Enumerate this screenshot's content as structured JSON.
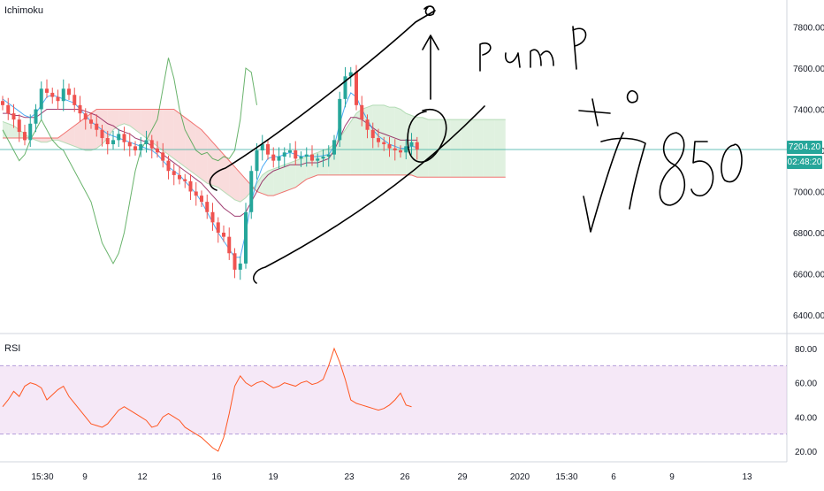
{
  "panes": {
    "main_label": "Ichimoku",
    "rsi_label": "RSI"
  },
  "price_tags": {
    "last_price": "7204.20",
    "countdown": "02:48:20"
  },
  "colors": {
    "up": "#26a69a",
    "down": "#ef5350",
    "conversion": "#2196f3",
    "base": "#880e4f",
    "lagging": "#43a047",
    "cloud_bull": "#a5d6a7",
    "cloud_bear": "#ef9a9a",
    "rsi_line": "#ff5722",
    "rsi_band": "#e1bee7",
    "price_line": "#26a69a",
    "annotation": "#000000"
  },
  "annotation": {
    "text_pump": "pump",
    "text_target": "7850"
  },
  "chart_data": [
    {
      "type": "candlestick",
      "title": "Ichimoku",
      "ylim": [
        6300,
        7900
      ],
      "y_ticks": [
        6400,
        6600,
        6800,
        7000,
        7200,
        7400,
        7600,
        7800
      ],
      "y_tick_labels": [
        "6400.00",
        "6600.00",
        "6800.00",
        "7000.00",
        "7200.00",
        "7400.00",
        "7600.00",
        "7800.00"
      ],
      "x_tick_labels": [
        "15:30",
        "9",
        "12",
        "16",
        "19",
        "23",
        "26",
        "29",
        "2020",
        "15:30",
        "6",
        "9",
        "13"
      ],
      "last_price": 7204.2,
      "candles_close": [
        7420,
        7380,
        7350,
        7290,
        7250,
        7330,
        7400,
        7500,
        7480,
        7460,
        7440,
        7500,
        7470,
        7420,
        7380,
        7350,
        7330,
        7300,
        7260,
        7230,
        7250,
        7280,
        7240,
        7220,
        7200,
        7230,
        7250,
        7210,
        7190,
        7150,
        7100,
        7080,
        7060,
        7050,
        7000,
        6980,
        6950,
        6900,
        6850,
        6800,
        6780,
        6700,
        6620,
        6650,
        6900,
        7100,
        7200,
        7230,
        7180,
        7150,
        7170,
        7190,
        7200,
        7160,
        7170,
        7180,
        7150,
        7160,
        7170,
        7180,
        7250,
        7450,
        7560,
        7580,
        7420,
        7350,
        7300,
        7260,
        7240,
        7230,
        7210,
        7200,
        7190,
        7220,
        7240,
        7204
      ],
      "ichimoku": {
        "conversion": [
          7450,
          7430,
          7410,
          7390,
          7370,
          7360,
          7380,
          7420,
          7460,
          7470,
          7460,
          7450,
          7440,
          7430,
          7400,
          7370,
          7340,
          7320,
          7300,
          7280,
          7270,
          7260,
          7250,
          7240,
          7230,
          7220,
          7210,
          7200,
          7180,
          7150,
          7120,
          7100,
          7080,
          7050,
          7020,
          6990,
          6950,
          6900,
          6850,
          6800,
          6760,
          6720,
          6680,
          6680,
          6800,
          6950,
          7050,
          7120,
          7160,
          7170,
          7170,
          7180,
          7190,
          7180,
          7170,
          7175,
          7170,
          7170,
          7175,
          7180,
          7220,
          7330,
          7420,
          7480,
          7460,
          7400,
          7350,
          7300,
          7270,
          7250,
          7230,
          7220,
          7210,
          7210,
          7220,
          7215
        ],
        "base": [
          7380,
          7380,
          7370,
          7370,
          7360,
          7360,
          7360,
          7380,
          7400,
          7400,
          7400,
          7400,
          7400,
          7400,
          7400,
          7390,
          7380,
          7370,
          7350,
          7330,
          7320,
          7300,
          7290,
          7280,
          7260,
          7250,
          7240,
          7220,
          7200,
          7180,
          7160,
          7140,
          7120,
          7100,
          7080,
          7060,
          7040,
          7010,
          6980,
          6950,
          6920,
          6900,
          6880,
          6880,
          6900,
          6950,
          7000,
          7050,
          7080,
          7100,
          7110,
          7120,
          7130,
          7130,
          7130,
          7140,
          7140,
          7140,
          7150,
          7160,
          7200,
          7260,
          7320,
          7360,
          7360,
          7350,
          7330,
          7310,
          7290,
          7280,
          7270,
          7260,
          7250,
          7250,
          7250,
          7250
        ],
        "lagging": [
          7300,
          7250,
          7200,
          7150,
          7180,
          7250,
          7300,
          7350,
          7300,
          7250,
          7220,
          7200,
          7150,
          7100,
          7050,
          7000,
          6950,
          6850,
          6750,
          6700,
          6650,
          6700,
          6800,
          6950,
          7100,
          7200,
          7250,
          7300,
          7350,
          7500,
          7650,
          7550,
          7400,
          7300,
          7250,
          7200,
          7180,
          7190,
          7160,
          7150,
          7170,
          7160,
          7200,
          7350,
          7600,
          7580,
          7420
        ],
        "span_a": [
          7340,
          7330,
          7320,
          7300,
          7280,
          7260,
          7250,
          7240,
          7240,
          7250,
          7250,
          7240,
          7230,
          7220,
          7210,
          7200,
          7200,
          7210,
          7230,
          7260,
          7300,
          7320,
          7330,
          7320,
          7300,
          7280,
          7260,
          7240,
          7220,
          7200,
          7180,
          7160,
          7140,
          7120,
          7100,
          7080,
          7060,
          7040,
          7030,
          7020,
          7000,
          6980,
          6960,
          6950,
          6970,
          7000,
          7040,
          7080,
          7100,
          7110,
          7120,
          7130,
          7140,
          7150,
          7160,
          7170,
          7180,
          7190,
          7200,
          7210,
          7230,
          7260,
          7300,
          7340,
          7380,
          7400,
          7410,
          7420,
          7420,
          7420,
          7410,
          7410,
          7400,
          7380,
          7370,
          7360,
          7360,
          7350,
          7350,
          7350,
          7350,
          7350,
          7350,
          7350,
          7350,
          7350,
          7350,
          7350,
          7350,
          7350,
          7350,
          7350,
          7350,
          7350,
          7350,
          7350,
          7350,
          7350,
          7350,
          7350,
          7350
        ],
        "span_b": [
          7260,
          7260,
          7260,
          7260,
          7260,
          7260,
          7260,
          7260,
          7260,
          7260,
          7260,
          7280,
          7300,
          7320,
          7340,
          7360,
          7380,
          7400,
          7400,
          7400,
          7400,
          7400,
          7400,
          7400,
          7400,
          7400,
          7400,
          7400,
          7400,
          7400,
          7400,
          7400,
          7380,
          7360,
          7340,
          7320,
          7300,
          7270,
          7240,
          7210,
          7180,
          7150,
          7120,
          7090,
          7060,
          7030,
          7000,
          6990,
          6980,
          6980,
          6990,
          7000,
          7010,
          7020,
          7040,
          7060,
          7070,
          7080,
          7080,
          7080,
          7080,
          7080,
          7080,
          7080,
          7080,
          7080,
          7080,
          7080,
          7080,
          7080,
          7080,
          7080,
          7080,
          7080,
          7080,
          7070,
          7070,
          7070,
          7070,
          7070,
          7070,
          7070,
          7070,
          7070,
          7070,
          7070,
          7070,
          7070,
          7070,
          7070,
          7070,
          7070,
          7070,
          7070,
          7070,
          7070,
          7070,
          7070,
          7070,
          7070,
          7070
        ]
      }
    },
    {
      "type": "line",
      "title": "RSI",
      "ylim": [
        15,
        85
      ],
      "y_ticks": [
        20,
        40,
        60,
        80
      ],
      "y_tick_labels": [
        "20.00",
        "40.00",
        "60.00",
        "80.00"
      ],
      "band": [
        30,
        70
      ],
      "series": [
        {
          "values": [
            46,
            50,
            55,
            52,
            58,
            60,
            59,
            57,
            50,
            53,
            56,
            58,
            52,
            48,
            44,
            40,
            36,
            35,
            34,
            36,
            40,
            44,
            46,
            44,
            42,
            40,
            38,
            34,
            35,
            40,
            42,
            40,
            38,
            34,
            32,
            30,
            28,
            25,
            22,
            20,
            28,
            42,
            58,
            64,
            60,
            58,
            60,
            61,
            59,
            57,
            58,
            60,
            59,
            58,
            60,
            61,
            59,
            60,
            62,
            70,
            80,
            72,
            62,
            50,
            48,
            47,
            46,
            45,
            44,
            45,
            47,
            50,
            54,
            47,
            46
          ]
        }
      ]
    }
  ]
}
